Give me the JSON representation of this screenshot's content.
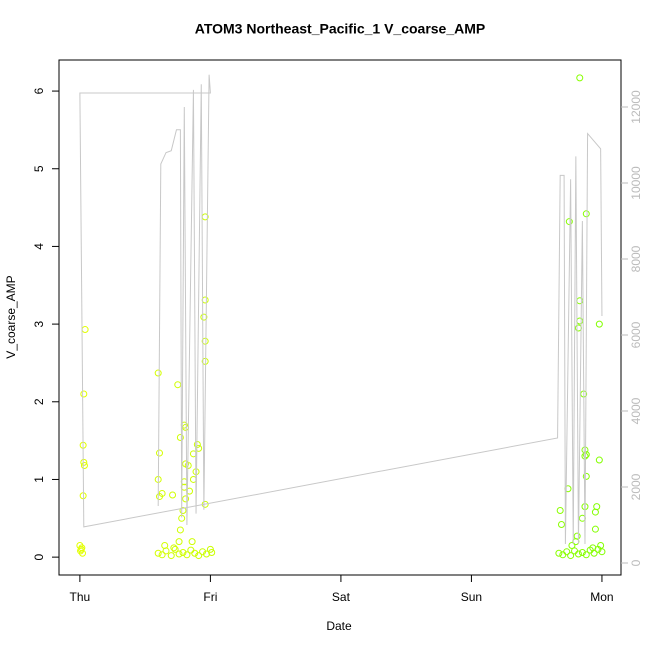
{
  "chart_data": {
    "type": "scatter",
    "title": "ATOM3 Northeast_Pacific_1 V_coarse_AMP",
    "x_label": "Date",
    "y_label": "V_coarse_AMP",
    "xlim": [
      -0.16,
      4.146
    ],
    "ylim": [
      -0.23,
      6.4
    ],
    "y2lim": [
      -316,
      13237
    ],
    "xticks": [
      {
        "value": 0,
        "label": "Thu"
      },
      {
        "value": 1,
        "label": "Fri"
      },
      {
        "value": 2,
        "label": "Sat"
      },
      {
        "value": 3,
        "label": "Sun"
      },
      {
        "value": 4,
        "label": "Mon"
      }
    ],
    "yticks": [
      0,
      1,
      2,
      3,
      4,
      5,
      6
    ],
    "y2ticks": [
      0,
      2000,
      4000,
      6000,
      8000,
      10000,
      12000
    ],
    "color_scale": [
      "#e6ff00",
      "#7fff00"
    ],
    "series": [
      {
        "x": [
          0.0,
          0.01,
          0.02,
          0.005,
          0.015,
          0.04,
          0.03,
          0.025,
          0.03,
          0.035,
          0.025,
          0.6,
          0.61,
          0.6,
          0.63,
          0.61,
          0.75,
          0.77,
          0.8,
          0.81,
          0.81,
          0.83,
          0.8,
          0.8,
          0.71,
          0.81,
          0.79,
          0.78,
          0.77,
          0.76,
          0.87,
          0.9,
          0.91,
          0.89,
          0.87,
          0.84,
          0.96,
          0.96,
          0.95,
          0.96,
          0.96,
          0.96,
          0.6,
          0.63,
          0.66,
          0.7,
          0.73,
          0.76,
          0.79,
          0.82,
          0.85,
          0.88,
          0.91,
          0.94,
          0.97,
          1.0,
          1.01,
          0.65,
          0.72,
          0.86,
          3.68,
          3.69,
          3.74,
          3.75,
          3.77,
          3.8,
          3.83,
          3.83,
          3.83,
          3.82,
          3.81,
          3.86,
          3.85,
          3.87,
          3.88,
          3.87,
          3.87,
          3.88,
          3.88,
          3.95,
          3.95,
          3.98,
          3.98,
          3.96,
          3.67,
          3.7,
          3.73,
          3.76,
          3.79,
          3.82,
          3.85,
          3.88,
          3.91,
          3.94,
          3.97,
          4.0,
          3.99,
          3.93
        ],
        "values": [
          0.15,
          0.1,
          0.05,
          0.08,
          0.12,
          2.93,
          2.1,
          1.44,
          1.22,
          1.18,
          0.79,
          2.37,
          1.34,
          1.0,
          0.82,
          0.78,
          2.22,
          1.54,
          1.7,
          1.67,
          1.2,
          1.18,
          0.97,
          0.9,
          0.8,
          0.75,
          0.6,
          0.5,
          0.35,
          0.2,
          1.33,
          1.45,
          1.4,
          1.1,
          1.0,
          0.85,
          4.38,
          3.31,
          3.09,
          2.78,
          2.52,
          0.68,
          0.05,
          0.03,
          0.08,
          0.02,
          0.1,
          0.04,
          0.06,
          0.03,
          0.09,
          0.05,
          0.02,
          0.07,
          0.04,
          0.1,
          0.06,
          0.15,
          0.12,
          0.2,
          0.6,
          0.42,
          0.88,
          4.32,
          0.15,
          0.2,
          6.17,
          3.3,
          3.04,
          2.95,
          0.27,
          2.1,
          0.5,
          0.65,
          4.42,
          1.38,
          1.3,
          1.32,
          1.04,
          0.58,
          0.36,
          1.25,
          3.0,
          0.65,
          0.05,
          0.03,
          0.07,
          0.02,
          0.08,
          0.04,
          0.06,
          0.03,
          0.09,
          0.05,
          0.1,
          0.07,
          0.15,
          0.12
        ]
      },
      {
        "type": "line",
        "axis": "y2",
        "color": "#c8c8c8",
        "x": [
          0.6,
          0.62,
          0.66,
          0.7,
          0.74,
          0.77,
          0.78,
          0.8,
          0.82,
          0.87,
          0.89,
          0.93,
          0.95,
          0.99,
          1.0,
          0.0,
          0.03,
          3.66,
          3.68,
          3.71,
          3.72,
          3.76,
          3.78,
          3.8,
          3.82,
          3.85,
          3.87,
          3.89,
          3.99,
          4.0
        ],
        "values": [
          1500,
          10500,
          10800,
          10850,
          11400,
          11400,
          1200,
          12000,
          1000,
          12450,
          1300,
          12600,
          1400,
          12850,
          12370,
          12370,
          950,
          3290,
          10200,
          10200,
          500,
          10100,
          500,
          10700,
          500,
          9000,
          500,
          11300,
          10900,
          6500
        ]
      }
    ]
  }
}
